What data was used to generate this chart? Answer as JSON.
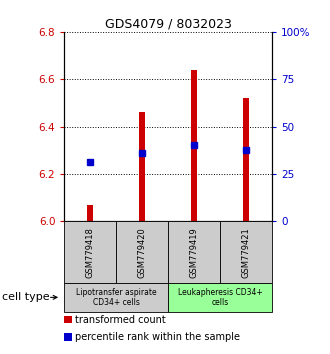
{
  "title": "GDS4079 / 8032023",
  "samples": [
    "GSM779418",
    "GSM779420",
    "GSM779419",
    "GSM779421"
  ],
  "bar_bottom": 6.0,
  "bar_tops": [
    6.07,
    6.46,
    6.64,
    6.52
  ],
  "percentile_values": [
    6.25,
    6.29,
    6.32,
    6.3
  ],
  "ylim": [
    6.0,
    6.8
  ],
  "yticks_left": [
    6.0,
    6.2,
    6.4,
    6.6,
    6.8
  ],
  "yticks_right": [
    0,
    25,
    50,
    75,
    100
  ],
  "y_right_labels": [
    "0",
    "25",
    "50",
    "75",
    "100%"
  ],
  "bar_color": "#cc0000",
  "percentile_color": "#0000cc",
  "bar_width": 0.12,
  "groups": [
    {
      "label": "Lipotransfer aspirate\nCD34+ cells",
      "start": 0,
      "end": 2,
      "color": "#cccccc"
    },
    {
      "label": "Leukapheresis CD34+\ncells",
      "start": 2,
      "end": 4,
      "color": "#99ff99"
    }
  ],
  "cell_type_label": "cell type",
  "legend_items": [
    {
      "color": "#cc0000",
      "label": "transformed count"
    },
    {
      "color": "#0000cc",
      "label": "percentile rank within the sample"
    }
  ],
  "left_tick_color": "#cc0000",
  "right_tick_color": "#0000cc",
  "title_fontsize": 9,
  "tick_fontsize": 7.5,
  "sample_fontsize": 6,
  "group_fontsize": 5.5,
  "legend_fontsize": 7
}
